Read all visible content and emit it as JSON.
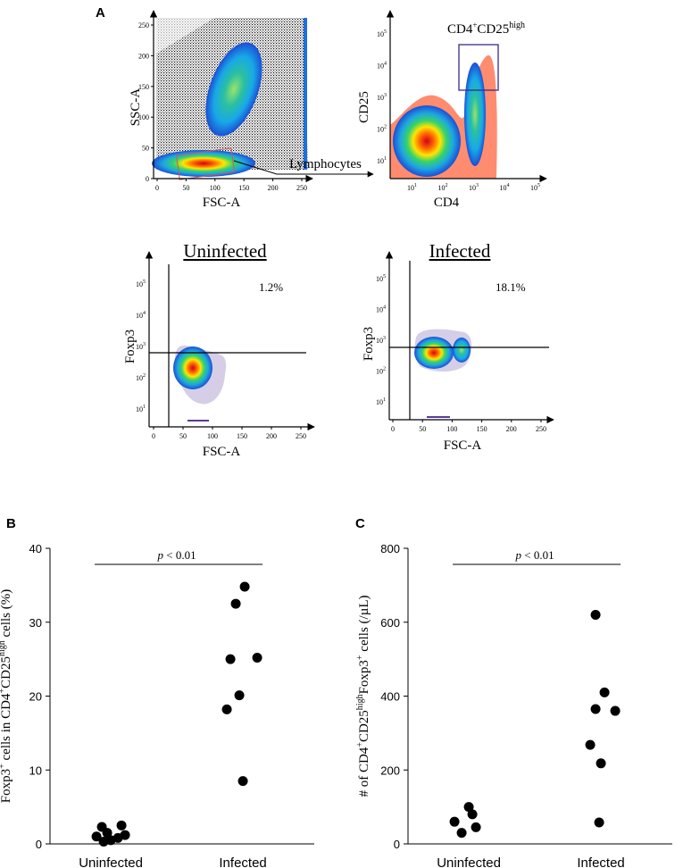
{
  "panel_a": {
    "letter": "A",
    "gating": {
      "x_label": "FSC-A",
      "y_label": "SSC-A",
      "x_ticks": [
        "0",
        "50",
        "100",
        "150",
        "200",
        "250"
      ],
      "y_ticks": [
        "0",
        "50",
        "100",
        "150",
        "200",
        "250"
      ],
      "gate_label": "Lymphocytes"
    },
    "cd4_cd25": {
      "x_label": "CD4",
      "y_label": "CD25",
      "log_ticks": [
        "10",
        "10",
        "10",
        "10",
        "10"
      ],
      "log_exps": [
        "1",
        "2",
        "3",
        "4",
        "5"
      ],
      "gate_label_main": "CD4",
      "gate_label_sup1": "+",
      "gate_label_mid": "CD25",
      "gate_label_sup2": "high"
    },
    "uninfected": {
      "title": "Uninfected",
      "percent": "1.2%",
      "x_label": "FSC-A",
      "y_label": "Foxp3",
      "x_ticks": [
        "0",
        "50",
        "100",
        "150",
        "200",
        "250"
      ]
    },
    "infected": {
      "title": "Infected",
      "percent": "18.1%",
      "x_label": "FSC-A",
      "y_label": "Foxp3",
      "x_ticks": [
        "0",
        "50",
        "100",
        "150",
        "200",
        "250"
      ]
    },
    "colors": {
      "density_high": "#e41a1c",
      "density_mid": "#ffd400",
      "density_low": "#1f6fe0",
      "events": "#5a3b9a",
      "gate": "#3a2a8a",
      "cd4_bg": "#ff7f5f"
    }
  },
  "chart_data": [
    {
      "panel": "B",
      "type": "scatter",
      "categories": [
        "Uninfected",
        "Infected"
      ],
      "series": [
        {
          "name": "Uninfected",
          "values": [
            0.3,
            0.5,
            0.8,
            1.0,
            1.2,
            1.5,
            2.3,
            2.5
          ]
        },
        {
          "name": "Infected",
          "values": [
            8.5,
            18.2,
            20.1,
            25.0,
            25.2,
            32.5,
            34.8
          ]
        }
      ],
      "ylabel_parts": [
        "Foxp3",
        "+",
        " cells in CD4",
        "+",
        "CD25",
        "high",
        " cells (%)"
      ],
      "ylim": [
        0,
        40
      ],
      "yticks": [
        "0",
        "10",
        "20",
        "30",
        "40"
      ],
      "pvalue_p": "p",
      "pvalue_rest": " < 0.01"
    },
    {
      "panel": "C",
      "type": "scatter",
      "categories": [
        "Uninfected",
        "Infected"
      ],
      "series": [
        {
          "name": "Uninfected",
          "values": [
            30,
            45,
            60,
            80,
            100
          ]
        },
        {
          "name": "Infected",
          "values": [
            58,
            218,
            268,
            360,
            365,
            410,
            620
          ]
        }
      ],
      "ylabel_parts": [
        "# of CD4",
        "+",
        "CD25",
        "high",
        "Foxp3",
        "+",
        " cells (/µL)"
      ],
      "ylim": [
        0,
        800
      ],
      "yticks": [
        "0",
        "200",
        "400",
        "600",
        "800"
      ],
      "pvalue_p": "p",
      "pvalue_rest": " < 0.01"
    }
  ]
}
